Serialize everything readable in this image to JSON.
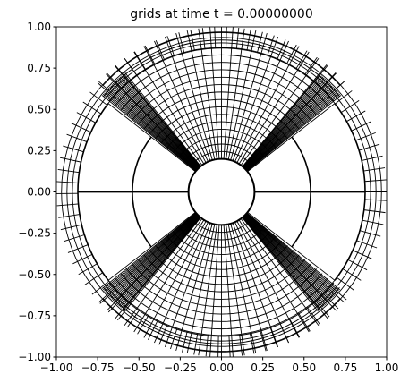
{
  "chart_data": {
    "type": "mesh",
    "title": "grids at time t =      0.00000000",
    "xlim": [
      -1,
      1
    ],
    "ylim": [
      -1,
      1
    ],
    "xticks": [
      {
        "value": -1,
        "label": "−1.00"
      },
      {
        "value": -0.75,
        "label": "−0.75"
      },
      {
        "value": -0.5,
        "label": "−0.50"
      },
      {
        "value": -0.25,
        "label": "−0.25"
      },
      {
        "value": 0,
        "label": "0.00"
      },
      {
        "value": 0.25,
        "label": "0.25"
      },
      {
        "value": 0.5,
        "label": "0.50"
      },
      {
        "value": 0.75,
        "label": "0.75"
      },
      {
        "value": 1,
        "label": "1.00"
      }
    ],
    "yticks": [
      {
        "value": -1,
        "label": "−1.00"
      },
      {
        "value": -0.75,
        "label": "−0.75"
      },
      {
        "value": -0.5,
        "label": "−0.50"
      },
      {
        "value": -0.25,
        "label": "−0.25"
      },
      {
        "value": 0,
        "label": "0.00"
      },
      {
        "value": 0.25,
        "label": "0.25"
      },
      {
        "value": 0.5,
        "label": "0.50"
      },
      {
        "value": 0.75,
        "label": "0.75"
      },
      {
        "value": 1,
        "label": "1.00"
      }
    ]
  }
}
